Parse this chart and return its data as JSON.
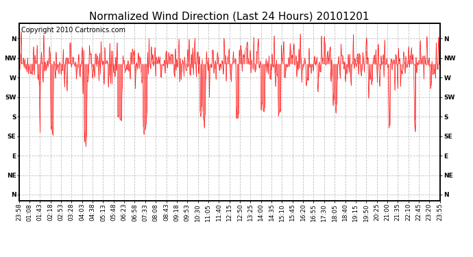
{
  "title": "Normalized Wind Direction (Last 24 Hours) 20101201",
  "copyright_text": "Copyright 2010 Cartronics.com",
  "line_color": "#ff0000",
  "background_color": "#ffffff",
  "grid_color": "#c0c0c0",
  "ytick_labels": [
    "N",
    "NW",
    "W",
    "SW",
    "S",
    "SE",
    "E",
    "NE",
    "N"
  ],
  "ytick_values": [
    8,
    7,
    6,
    5,
    4,
    3,
    2,
    1,
    0
  ],
  "ylim": [
    -0.3,
    8.8
  ],
  "xtick_labels": [
    "23:58",
    "01:08",
    "01:43",
    "02:18",
    "02:53",
    "03:28",
    "04:03",
    "04:38",
    "05:13",
    "05:48",
    "06:23",
    "06:58",
    "07:33",
    "08:08",
    "08:43",
    "09:18",
    "09:53",
    "10:30",
    "11:05",
    "11:40",
    "12:15",
    "12:50",
    "13:25",
    "14:00",
    "14:35",
    "15:10",
    "15:45",
    "16:20",
    "16:55",
    "17:30",
    "18:05",
    "18:40",
    "19:15",
    "19:50",
    "20:25",
    "21:00",
    "21:35",
    "22:10",
    "22:45",
    "23:20",
    "23:55"
  ],
  "title_fontsize": 11,
  "tick_fontsize": 6.5,
  "copyright_fontsize": 7,
  "seed": 42,
  "n_points": 580
}
